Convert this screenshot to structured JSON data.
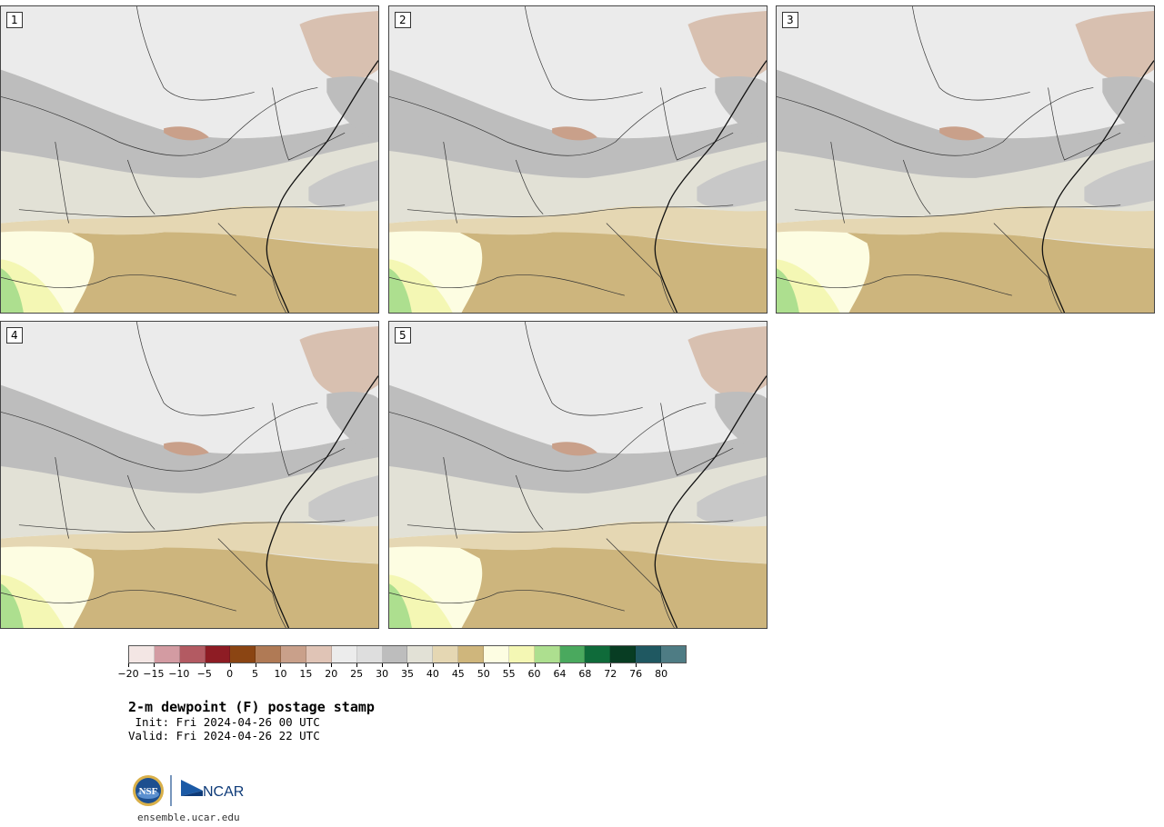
{
  "panels": [
    {
      "label": "1"
    },
    {
      "label": "2"
    },
    {
      "label": "3"
    },
    {
      "label": "4"
    },
    {
      "label": "5"
    }
  ],
  "colorbar": {
    "colors": [
      "#f3e6e4",
      "#d39ba2",
      "#b35a62",
      "#8e1c24",
      "#8b4513",
      "#b07a55",
      "#c9a08a",
      "#e0c4b6",
      "#ececec",
      "#dedede",
      "#bdbdbd",
      "#e2e1d6",
      "#e5d7b3",
      "#cfb67c",
      "#fdfde2",
      "#f4f7b4",
      "#addf8f",
      "#4aa95e",
      "#0f6b3a",
      "#083d23",
      "#1f5861",
      "#4e7c84"
    ],
    "tick_labels": [
      "−20",
      "−15",
      "−10",
      "−5",
      "0",
      "5",
      "10",
      "15",
      "20",
      "25",
      "30",
      "35",
      "40",
      "45",
      "50",
      "55",
      "60",
      "64",
      "68",
      "72",
      "76",
      "80"
    ]
  },
  "title": "2-m dewpoint (F) postage stamp",
  "init": " Init: Fri 2024-04-26 00 UTC",
  "valid": "Valid: Fri 2024-04-26 22 UTC",
  "logos": {
    "nsf": "NSF",
    "ncar": "NCAR"
  },
  "site": "ensemble.ucar.edu"
}
